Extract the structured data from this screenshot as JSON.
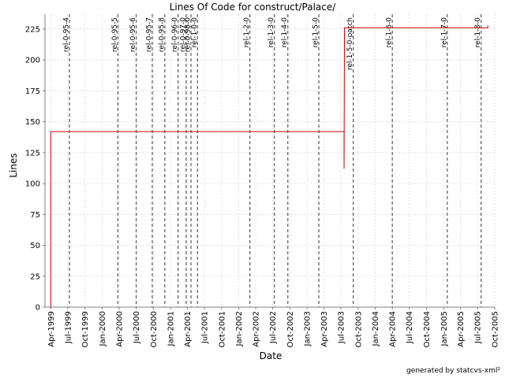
{
  "chart_data": {
    "type": "line",
    "title": "Lines Of Code for construct/Palace/",
    "xlabel": "Date",
    "ylabel": "Lines",
    "footer": "generated by statcvs-xml²",
    "x_range": [
      "1999-03-01",
      "2005-10-01"
    ],
    "ylim": [
      0,
      237
    ],
    "y_ticks": [
      0,
      25,
      50,
      75,
      100,
      125,
      150,
      175,
      200,
      225
    ],
    "x_ticks": [
      {
        "date": "1999-04-01",
        "label": "Apr-1999"
      },
      {
        "date": "1999-07-01",
        "label": "Jul-1999"
      },
      {
        "date": "1999-10-01",
        "label": "Oct-1999"
      },
      {
        "date": "2000-01-01",
        "label": "Jan-2000"
      },
      {
        "date": "2000-04-01",
        "label": "Apr-2000"
      },
      {
        "date": "2000-07-01",
        "label": "Jul-2000"
      },
      {
        "date": "2000-10-01",
        "label": "Oct-2000"
      },
      {
        "date": "2001-01-01",
        "label": "Jan-2001"
      },
      {
        "date": "2001-04-01",
        "label": "Apr-2001"
      },
      {
        "date": "2001-07-01",
        "label": "Jul-2001"
      },
      {
        "date": "2001-10-01",
        "label": "Oct-2001"
      },
      {
        "date": "2002-01-01",
        "label": "Jan-2002"
      },
      {
        "date": "2002-04-01",
        "label": "Apr-2002"
      },
      {
        "date": "2002-07-01",
        "label": "Jul-2002"
      },
      {
        "date": "2002-10-01",
        "label": "Oct-2002"
      },
      {
        "date": "2003-01-01",
        "label": "Jan-2003"
      },
      {
        "date": "2003-04-01",
        "label": "Apr-2003"
      },
      {
        "date": "2003-07-01",
        "label": "Jul-2003"
      },
      {
        "date": "2003-10-01",
        "label": "Oct-2003"
      },
      {
        "date": "2004-01-01",
        "label": "Jan-2004"
      },
      {
        "date": "2004-04-01",
        "label": "Apr-2004"
      },
      {
        "date": "2004-07-01",
        "label": "Jul-2004"
      },
      {
        "date": "2004-10-01",
        "label": "Oct-2004"
      },
      {
        "date": "2005-01-01",
        "label": "Jan-2005"
      },
      {
        "date": "2005-04-01",
        "label": "Apr-2005"
      },
      {
        "date": "2005-07-01",
        "label": "Jul-2005"
      },
      {
        "date": "2005-10-01",
        "label": "Oct-2005"
      }
    ],
    "grid": true,
    "series": [
      {
        "color": "#cc0000",
        "step": true,
        "points": [
          {
            "x": "1999-04-01",
            "y": 0
          },
          {
            "x": "1999-04-01",
            "y": 142
          },
          {
            "x": "2003-07-18",
            "y": 142
          },
          {
            "x": "2003-07-18",
            "y": 112
          },
          {
            "x": "2003-07-20",
            "y": 226
          },
          {
            "x": "2005-08-25",
            "y": 226
          },
          {
            "x": "2005-08-25",
            "y": 228
          }
        ]
      }
    ],
    "release_tags": [
      {
        "label": "rel-0-95-4",
        "date": "1999-07-10"
      },
      {
        "label": "rel-0-95-5",
        "date": "2000-03-25"
      },
      {
        "label": "rel-0-95-6",
        "date": "2000-07-01"
      },
      {
        "label": "rel-0-95-7",
        "date": "2000-09-25"
      },
      {
        "label": "rel-0-95-8",
        "date": "2000-12-01"
      },
      {
        "label": "rel-0-96-0",
        "date": "2001-02-10"
      },
      {
        "label": "rel-0-97-0",
        "date": "2001-03-25"
      },
      {
        "label": "rel-0-98-0",
        "date": "2001-04-20"
      },
      {
        "label": "rel-1-0-0",
        "date": "2001-05-25"
      },
      {
        "label": "rel-1-2-0",
        "date": "2002-03-01"
      },
      {
        "label": "rel-1-3-0",
        "date": "2002-07-10"
      },
      {
        "label": "rel-1-4-0",
        "date": "2002-09-20"
      },
      {
        "label": "rel-1-5-0",
        "date": "2003-03-05"
      },
      {
        "label": "rel-1-5-0-patch",
        "date": "2003-09-05"
      },
      {
        "label": "rel-1-6-0",
        "date": "2004-04-01"
      },
      {
        "label": "rel-1-7-0",
        "date": "2005-01-20"
      },
      {
        "label": "rel-1-8-0",
        "date": "2005-07-20"
      }
    ]
  }
}
